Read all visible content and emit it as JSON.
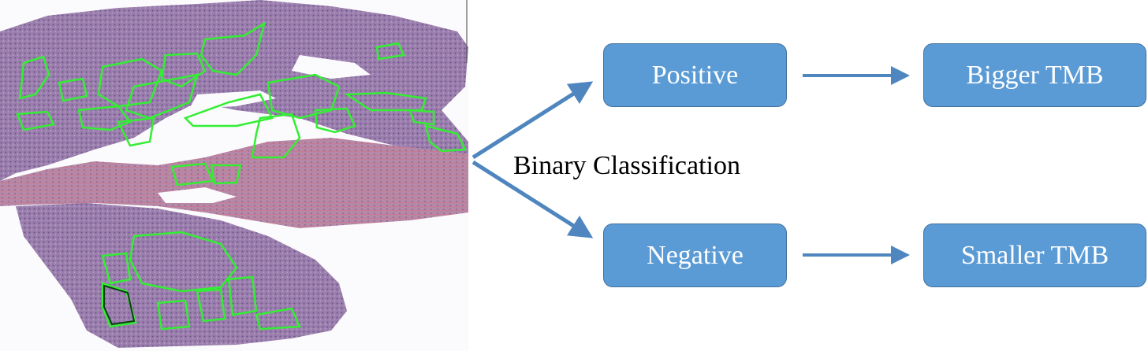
{
  "diagram": {
    "classification_label": "Binary Classification",
    "nodes": {
      "positive": "Positive",
      "negative": "Negative",
      "bigger_tmb": "Bigger TMB",
      "smaller_tmb": "Smaller TMB"
    },
    "colors": {
      "box_fill": "#5b9bd5",
      "box_border": "#41719c",
      "annotation_outline": "#33ee33",
      "tissue": "#8a6a9c"
    }
  }
}
